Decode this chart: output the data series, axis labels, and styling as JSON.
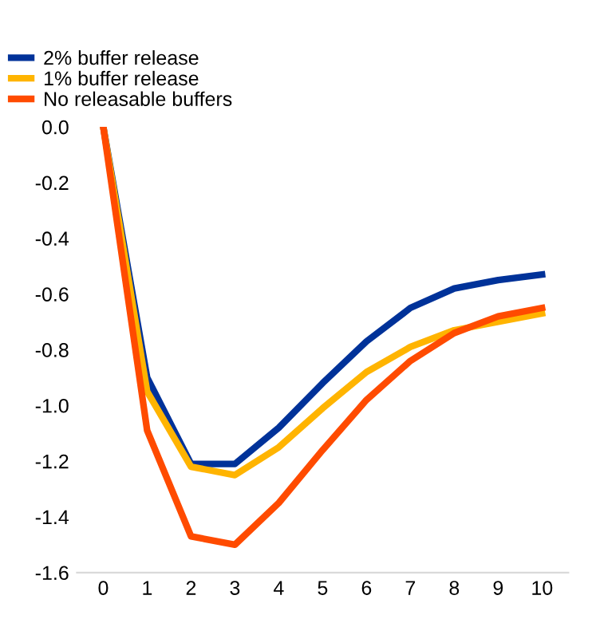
{
  "chart_data": {
    "type": "line",
    "x": [
      0,
      1,
      2,
      3,
      4,
      5,
      6,
      7,
      8,
      9,
      10
    ],
    "series": [
      {
        "name": "2% buffer release",
        "color": "#003299",
        "values": [
          0,
          -0.9,
          -1.21,
          -1.21,
          -1.08,
          -0.92,
          -0.77,
          -0.65,
          -0.58,
          -0.55,
          -0.53
        ]
      },
      {
        "name": "1% buffer release",
        "color": "#ffb400",
        "values": [
          0,
          -0.95,
          -1.22,
          -1.25,
          -1.15,
          -1.01,
          -0.88,
          -0.79,
          -0.73,
          -0.7,
          -0.67
        ]
      },
      {
        "name": "No releasable buffers",
        "color": "#ff4b00",
        "values": [
          0,
          -1.09,
          -1.47,
          -1.5,
          -1.35,
          -1.16,
          -0.98,
          -0.84,
          -0.74,
          -0.68,
          -0.65
        ]
      }
    ],
    "xlim": [
      -0.6,
      10.6
    ],
    "xticks": [
      0,
      1,
      2,
      3,
      4,
      5,
      6,
      7,
      8,
      9,
      10
    ],
    "ylim": [
      -1.6,
      0.0
    ],
    "yticks": [
      {
        "value": 0,
        "label": "0.0"
      },
      -0.2,
      -0.4,
      -0.6,
      -0.8,
      {
        "value": -1,
        "label": "-1.0"
      },
      -1.2,
      -1.4,
      -1.6
    ],
    "grid": false,
    "legend": "top left",
    "marker": "none",
    "line_style": "solid"
  }
}
